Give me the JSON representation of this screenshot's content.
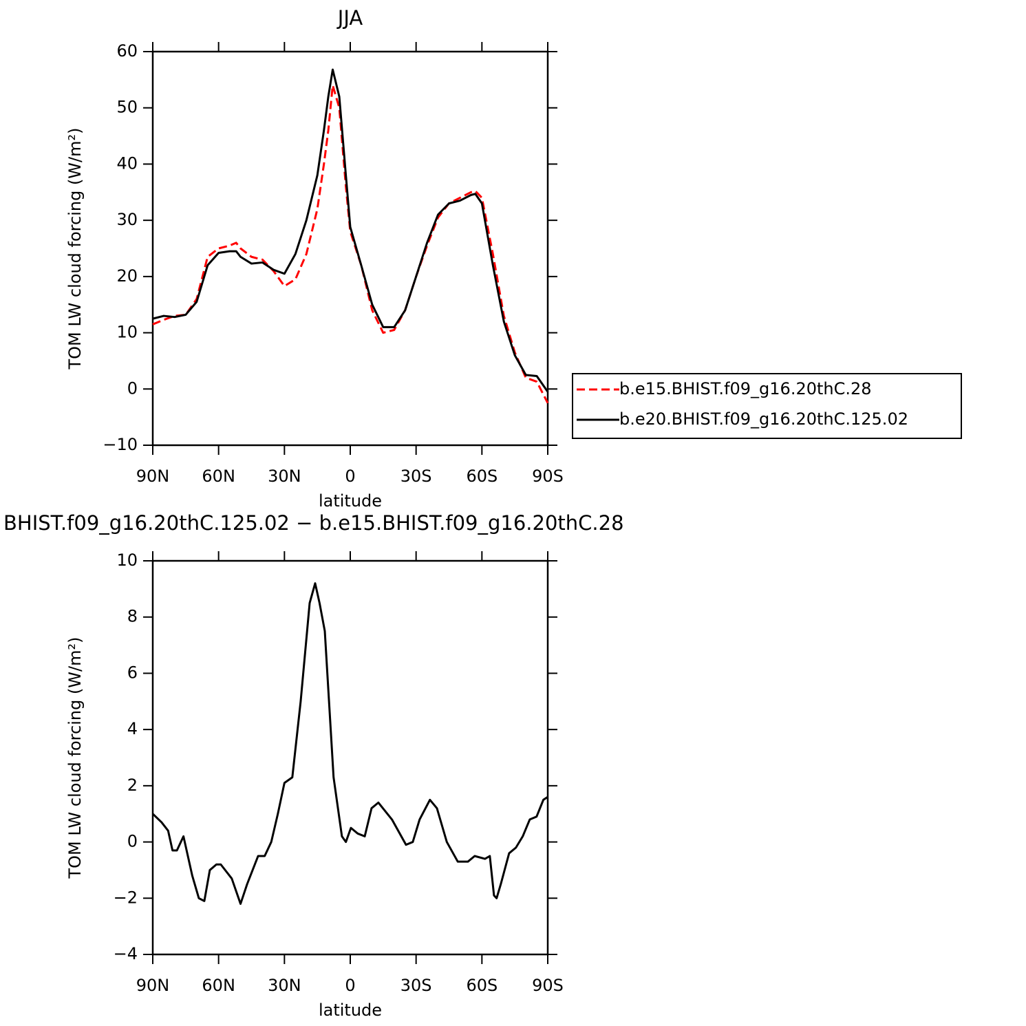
{
  "chart_data": [
    {
      "type": "line",
      "title": "JJA",
      "xlabel": "latitude",
      "ylabel": "TOM LW cloud forcing (W/m²)",
      "x": [
        90,
        85,
        80,
        75,
        70,
        65,
        60,
        55,
        52,
        50,
        45,
        40,
        35,
        30,
        25,
        20,
        15,
        12,
        10,
        8,
        5,
        2,
        0,
        -5,
        -10,
        -15,
        -20,
        -25,
        -30,
        -35,
        -40,
        -45,
        -50,
        -55,
        -57,
        -60,
        -65,
        -70,
        -75,
        -80,
        -85,
        -90
      ],
      "series": [
        {
          "name": "b.e15.BHIST.f09_g16.20thC.28",
          "color": "#ff0000",
          "style": "dashed",
          "values": [
            11.5,
            12.3,
            13,
            13.2,
            16,
            23.5,
            25,
            25.5,
            26,
            25,
            23.5,
            23,
            21,
            18.3,
            19.5,
            24,
            32,
            40,
            46,
            54,
            50,
            36,
            28,
            22,
            14,
            10,
            10.5,
            14,
            20,
            25.5,
            30.5,
            33,
            34,
            35,
            35.2,
            34,
            24,
            13,
            6.5,
            2,
            1.3,
            -2.5
          ]
        },
        {
          "name": "b.e20.BHIST.f09_g16.20thC.125.02",
          "color": "#000000",
          "style": "solid",
          "values": [
            12.5,
            13,
            12.8,
            13.2,
            15.5,
            22,
            24.2,
            24.5,
            24.5,
            23.5,
            22.3,
            22.5,
            21.2,
            20.5,
            24,
            30,
            38,
            46,
            52,
            56.8,
            52,
            38,
            28.8,
            22,
            15,
            11,
            11,
            14,
            20,
            26,
            31,
            33,
            33.5,
            34.5,
            34.7,
            33,
            22,
            12,
            6,
            2.5,
            2.3,
            -0.5
          ]
        }
      ],
      "xlim": [
        90,
        -90
      ],
      "xticks": [
        {
          "value": 90,
          "label": "90N"
        },
        {
          "value": 60,
          "label": "60N"
        },
        {
          "value": 30,
          "label": "30N"
        },
        0,
        {
          "value": -30,
          "label": "30S"
        },
        {
          "value": -60,
          "label": "60S"
        },
        {
          "value": -90,
          "label": "90S"
        }
      ],
      "ylim": [
        -10,
        60
      ],
      "yticks": [
        {
          "value": -10,
          "label": "−10"
        },
        0,
        10,
        20,
        30,
        40,
        50,
        60
      ],
      "legend": "right"
    },
    {
      "type": "line",
      "title": "BHIST.f09_g16.20thC.125.02 − b.e15.BHIST.f09_g16.20thC.28",
      "xlabel": "latitude",
      "ylabel": "TOM LW cloud forcing (W/m²)",
      "x": [
        90,
        86,
        83,
        81,
        79,
        76,
        72,
        69,
        66.5,
        64,
        61,
        59,
        54,
        50,
        47,
        42,
        39,
        36,
        33,
        30,
        26.4,
        22.6,
        18.5,
        16,
        14,
        11.6,
        7.6,
        3.8,
        2,
        -0.3,
        -3.4,
        -6.6,
        -9.7,
        -12.8,
        -19,
        -25.4,
        -28.5,
        -31.6,
        -36.3,
        -39.5,
        -44,
        -49,
        -53.6,
        -56.7,
        -61.4,
        -63.6,
        -65.5,
        -66.7,
        -68.6,
        -72.4,
        -75.5,
        -78.6,
        -81.8,
        -84.9,
        -88,
        -90
      ],
      "series": [
        {
          "color": "#000000",
          "style": "solid",
          "values": [
            1.0,
            0.7,
            0.4,
            -0.3,
            -0.3,
            0.2,
            -1.2,
            -2.0,
            -2.1,
            -1.0,
            -0.8,
            -0.8,
            -1.3,
            -2.2,
            -1.5,
            -0.5,
            -0.5,
            0.0,
            1.0,
            2.1,
            2.3,
            5.0,
            8.5,
            9.2,
            8.5,
            7.5,
            2.3,
            0.2,
            0.0,
            0.5,
            0.3,
            0.2,
            1.2,
            1.4,
            0.8,
            -0.1,
            0.0,
            0.8,
            1.5,
            1.2,
            0.0,
            -0.7,
            -0.7,
            -0.5,
            -0.6,
            -0.5,
            -1.9,
            -2.0,
            -1.5,
            -0.4,
            -0.2,
            0.2,
            0.8,
            0.9,
            1.5,
            1.6
          ]
        }
      ],
      "xlim": [
        90,
        -90
      ],
      "xticks": [
        {
          "value": 90,
          "label": "90N"
        },
        {
          "value": 60,
          "label": "60N"
        },
        {
          "value": 30,
          "label": "30N"
        },
        0,
        {
          "value": -30,
          "label": "30S"
        },
        {
          "value": -60,
          "label": "60S"
        },
        {
          "value": -90,
          "label": "90S"
        }
      ],
      "ylim": [
        -4,
        10
      ],
      "yticks": [
        {
          "value": -4,
          "label": "−4"
        },
        {
          "value": -2,
          "label": "−2"
        },
        0,
        2,
        4,
        6,
        8,
        10
      ]
    }
  ]
}
